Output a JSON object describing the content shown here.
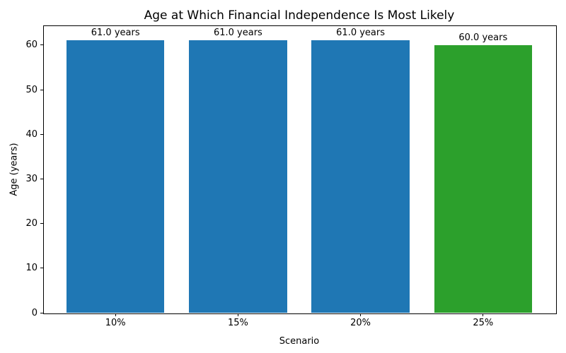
{
  "chart_data": {
    "type": "bar",
    "title": "Age at Which Financial Independence Is Most Likely",
    "xlabel": "Scenario",
    "ylabel": "Age (years)",
    "categories": [
      "10%",
      "15%",
      "20%",
      "25%"
    ],
    "values": [
      61.0,
      61.0,
      61.0,
      60.0
    ],
    "bar_value_labels": [
      "61.0 years",
      "61.0 years",
      "61.0 years",
      "60.0 years"
    ],
    "bar_colors": [
      "#1f77b4",
      "#1f77b4",
      "#1f77b4",
      "#2ca02c"
    ],
    "yticks": [
      0,
      10,
      20,
      30,
      40,
      50,
      60
    ],
    "ylim": [
      0,
      64.4
    ],
    "bar_width_fraction": 0.8,
    "grid": false,
    "legend_position": "none",
    "frame": "full-box"
  }
}
